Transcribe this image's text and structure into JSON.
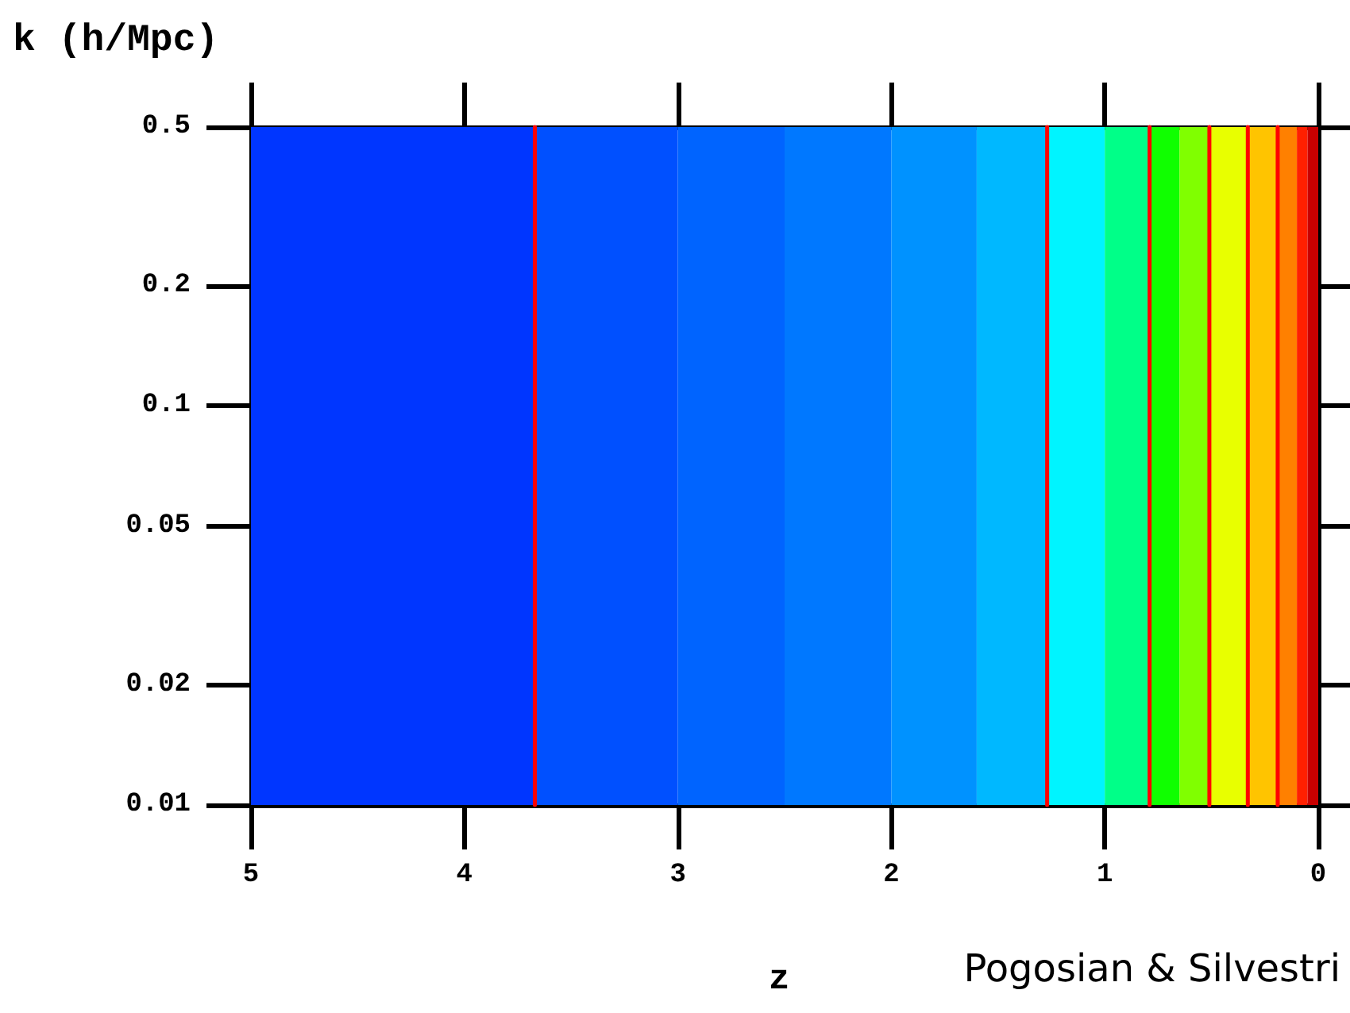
{
  "chart_data": {
    "type": "line",
    "xlabel": "z",
    "ylabel": "k (h/Mpc)",
    "xlim": [
      5,
      0
    ],
    "xticks": [
      5,
      4,
      3,
      2,
      1,
      0
    ],
    "ylim": [
      0.01,
      0.5
    ],
    "yticks": [
      0.01,
      0.02,
      0.05,
      0.1,
      0.2,
      0.5
    ],
    "log": "y",
    "marker": "none",
    "annotations": [
      "Pogosian & Silvestri"
    ],
    "series": [
      {
        "color": "#ff0000",
        "x": [
          3.67,
          3.67
        ],
        "values": [
          0.01,
          0.5
        ]
      },
      {
        "color": "#ff0000",
        "x": [
          1.27,
          1.27
        ],
        "values": [
          0.01,
          0.5
        ]
      },
      {
        "color": "#ff0000",
        "x": [
          0.79,
          0.79
        ],
        "values": [
          0.01,
          0.5
        ]
      },
      {
        "color": "#ff0000",
        "x": [
          0.51,
          0.51
        ],
        "values": [
          0.01,
          0.5
        ]
      },
      {
        "color": "#ff0000",
        "x": [
          0.33,
          0.33
        ],
        "values": [
          0.01,
          0.5
        ]
      },
      {
        "color": "#ff0000",
        "x": [
          0.19,
          0.19
        ],
        "values": [
          0.01,
          0.5
        ]
      }
    ],
    "bands": [
      {
        "axis": "x",
        "from": 5,
        "to": 3.67,
        "color": "#0036ff"
      },
      {
        "axis": "x",
        "from": 3.67,
        "to": 3.0,
        "color": "#0050ff"
      },
      {
        "axis": "x",
        "from": 3.0,
        "to": 2.5,
        "color": "#0064ff"
      },
      {
        "axis": "x",
        "from": 2.5,
        "to": 2.0,
        "color": "#0078ff"
      },
      {
        "axis": "x",
        "from": 2.0,
        "to": 1.6,
        "color": "#0092ff"
      },
      {
        "axis": "x",
        "from": 1.6,
        "to": 1.27,
        "color": "#00b8ff"
      },
      {
        "axis": "x",
        "from": 1.27,
        "to": 1.0,
        "color": "#00f4ff"
      },
      {
        "axis": "x",
        "from": 1.0,
        "to": 0.79,
        "color": "#00ff88"
      },
      {
        "axis": "x",
        "from": 0.79,
        "to": 0.65,
        "color": "#10ff00"
      },
      {
        "axis": "x",
        "from": 0.65,
        "to": 0.51,
        "color": "#80ff00"
      },
      {
        "axis": "x",
        "from": 0.51,
        "to": 0.33,
        "color": "#e8ff00"
      },
      {
        "axis": "x",
        "from": 0.33,
        "to": 0.19,
        "color": "#ffc400"
      },
      {
        "axis": "x",
        "from": 0.19,
        "to": 0.1,
        "color": "#ff8000"
      },
      {
        "axis": "x",
        "from": 0.1,
        "to": 0.05,
        "color": "#ff2000"
      },
      {
        "axis": "x",
        "from": 0.05,
        "to": 0,
        "color": "#c80000"
      }
    ]
  }
}
